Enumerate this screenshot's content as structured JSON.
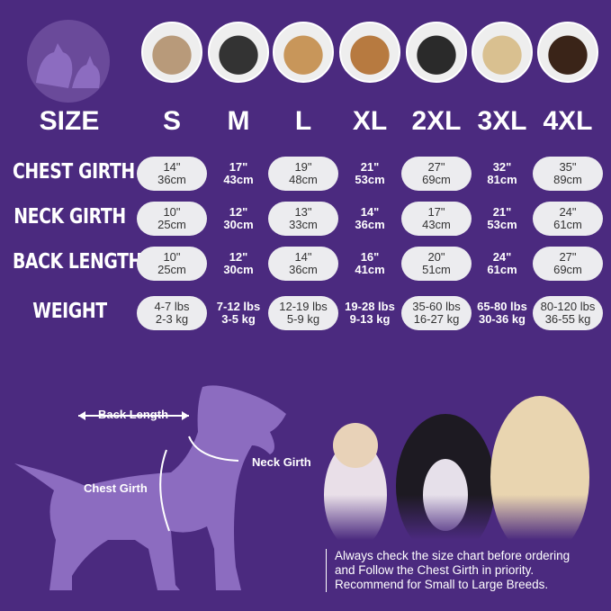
{
  "header_label": "SIZE",
  "sizes": [
    "S",
    "M",
    "L",
    "XL",
    "2XL",
    "3XL",
    "4XL"
  ],
  "rows": [
    {
      "label": "CHEST GIRTH",
      "values": [
        [
          "14\"",
          "36cm"
        ],
        [
          "17\"",
          "43cm"
        ],
        [
          "19\"",
          "48cm"
        ],
        [
          "21\"",
          "53cm"
        ],
        [
          "27\"",
          "69cm"
        ],
        [
          "32\"",
          "81cm"
        ],
        [
          "35\"",
          "89cm"
        ]
      ]
    },
    {
      "label": "NECK GIRTH",
      "values": [
        [
          "10\"",
          "25cm"
        ],
        [
          "12\"",
          "30cm"
        ],
        [
          "13\"",
          "33cm"
        ],
        [
          "14\"",
          "36cm"
        ],
        [
          "17\"",
          "43cm"
        ],
        [
          "21\"",
          "53cm"
        ],
        [
          "24\"",
          "61cm"
        ]
      ]
    },
    {
      "label": "BACK LENGTH",
      "values": [
        [
          "10\"",
          "25cm"
        ],
        [
          "12\"",
          "30cm"
        ],
        [
          "14\"",
          "36cm"
        ],
        [
          "16\"",
          "41cm"
        ],
        [
          "20\"",
          "51cm"
        ],
        [
          "24\"",
          "61cm"
        ],
        [
          "27\"",
          "69cm"
        ]
      ]
    },
    {
      "label": "WEIGHT",
      "values": [
        [
          "4-7 lbs",
          "2-3 kg"
        ],
        [
          "7-12 lbs",
          "3-5 kg"
        ],
        [
          "12-19 lbs",
          "5-9 kg"
        ],
        [
          "19-28 lbs",
          "9-13 kg"
        ],
        [
          "35-60 lbs",
          "16-27 kg"
        ],
        [
          "65-80 lbs",
          "30-36 kg"
        ],
        [
          "80-120 lbs",
          "36-55 kg"
        ]
      ]
    }
  ],
  "diagram": {
    "back_length": "Back Length",
    "neck_girth": "Neck Girth",
    "chest_girth": "Chest Girth"
  },
  "note": [
    "Always check the size chart before ordering",
    "and Follow the Chest Girth in priority.",
    "Recommend for Small to Large Breeds."
  ],
  "colors": {
    "background": "#4b2a7f",
    "pill": "#ececef",
    "silhouette": "#8c6cc0"
  }
}
